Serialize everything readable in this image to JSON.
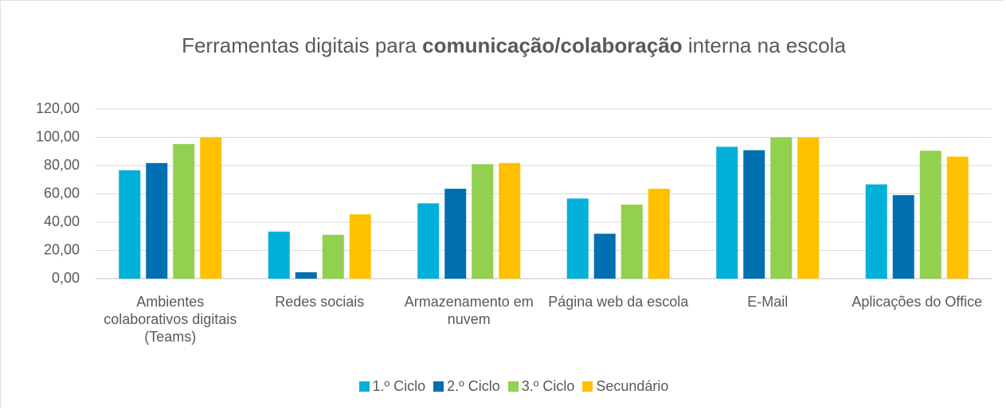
{
  "chart_data": {
    "type": "bar",
    "title": [
      {
        "text": "Ferramentas digitais para ",
        "bold": false
      },
      {
        "text": "comunicação/colaboração",
        "bold": true
      },
      {
        "text": " interna na escola",
        "bold": false
      }
    ],
    "categories": [
      "Ambientes colaborativos digitais (Teams)",
      "Redes sociais",
      "Armazenamento em nuvem",
      "Página web da escola",
      "E-Mail",
      "Aplicações do Office"
    ],
    "series": [
      {
        "name": "1.º Ciclo",
        "color": "#00b0d8",
        "values": [
          76.7,
          33.3,
          53.3,
          56.7,
          93.3,
          66.7
        ]
      },
      {
        "name": "2.º Ciclo",
        "color": "#0070b0",
        "values": [
          81.8,
          4.5,
          63.6,
          31.8,
          90.9,
          59.1
        ]
      },
      {
        "name": "3.º Ciclo",
        "color": "#92d050",
        "values": [
          95.2,
          31.0,
          81.0,
          52.4,
          100,
          90.5
        ]
      },
      {
        "name": "Secundário",
        "color": "#ffc000",
        "values": [
          100,
          45.5,
          81.8,
          63.6,
          100,
          86.4
        ]
      }
    ],
    "ylim": [
      0,
      120
    ],
    "yticks": [
      {
        "value": 0,
        "label": "0,00"
      },
      {
        "value": 20,
        "label": "20,00"
      },
      {
        "value": 40,
        "label": "40,00"
      },
      {
        "value": 60,
        "label": "60,00"
      },
      {
        "value": 80,
        "label": "80,00"
      },
      {
        "value": 100,
        "label": "100,00"
      },
      {
        "value": 120,
        "label": "120,00"
      }
    ],
    "grid": true,
    "legend": "bottom"
  }
}
